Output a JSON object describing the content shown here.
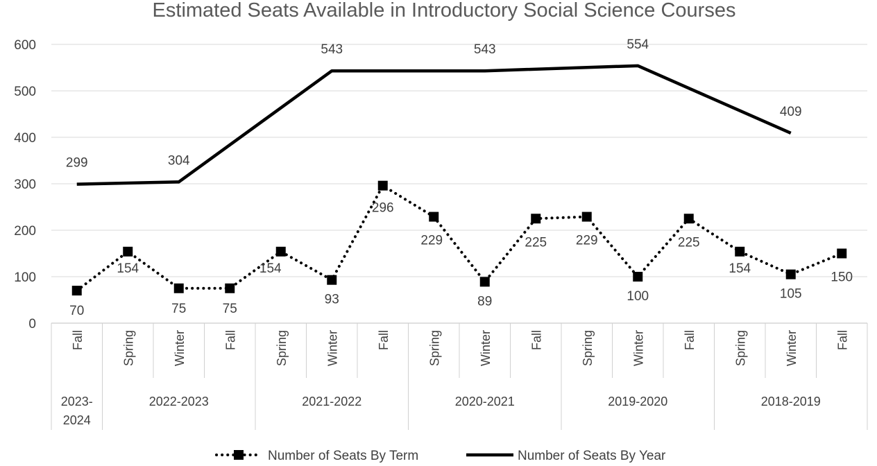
{
  "chart_data": {
    "type": "line",
    "title": "Estimated Seats Available in Introductory Social Science Courses",
    "xlabel": "",
    "ylabel": "",
    "ylim": [
      0,
      600
    ],
    "yticks": [
      0,
      100,
      200,
      300,
      400,
      500,
      600
    ],
    "grid": true,
    "legend_position": "bottom",
    "categories": [
      "Fall",
      "Spring",
      "Winter",
      "Fall",
      "Spring",
      "Winter",
      "Fall",
      "Spring",
      "Winter",
      "Fall",
      "Spring",
      "Winter",
      "Fall",
      "Spring",
      "Winter",
      "Fall"
    ],
    "groups": [
      {
        "label": "2023-\n2024",
        "span": 1
      },
      {
        "label": "2022-2023",
        "span": 3
      },
      {
        "label": "2021-2022",
        "span": 3
      },
      {
        "label": "2020-2021",
        "span": 3
      },
      {
        "label": "2019-2020",
        "span": 3
      },
      {
        "label": "2018-2019",
        "span": 3
      }
    ],
    "series": [
      {
        "name": "Number of Seats By Term",
        "style": "dotted-square-markers",
        "color": "#000000",
        "values": [
          70,
          154,
          75,
          75,
          154,
          93,
          296,
          229,
          89,
          225,
          229,
          100,
          225,
          154,
          105,
          150
        ],
        "labels": [
          "70",
          "154",
          "75",
          "75",
          "154",
          "93",
          "296",
          "229",
          "89",
          "225",
          "229",
          "100",
          "225",
          "154",
          "105",
          "150"
        ]
      },
      {
        "name": "Number of Seats By Year",
        "style": "solid",
        "color": "#000000",
        "points": [
          {
            "index": 0,
            "value": 299,
            "label": "299"
          },
          {
            "index": 2,
            "value": 304,
            "label": "304"
          },
          {
            "index": 5,
            "value": 543,
            "label": "543"
          },
          {
            "index": 8,
            "value": 543,
            "label": "543"
          },
          {
            "index": 11,
            "value": 554,
            "label": "554"
          },
          {
            "index": 14,
            "value": 409,
            "label": "409"
          }
        ]
      }
    ]
  }
}
